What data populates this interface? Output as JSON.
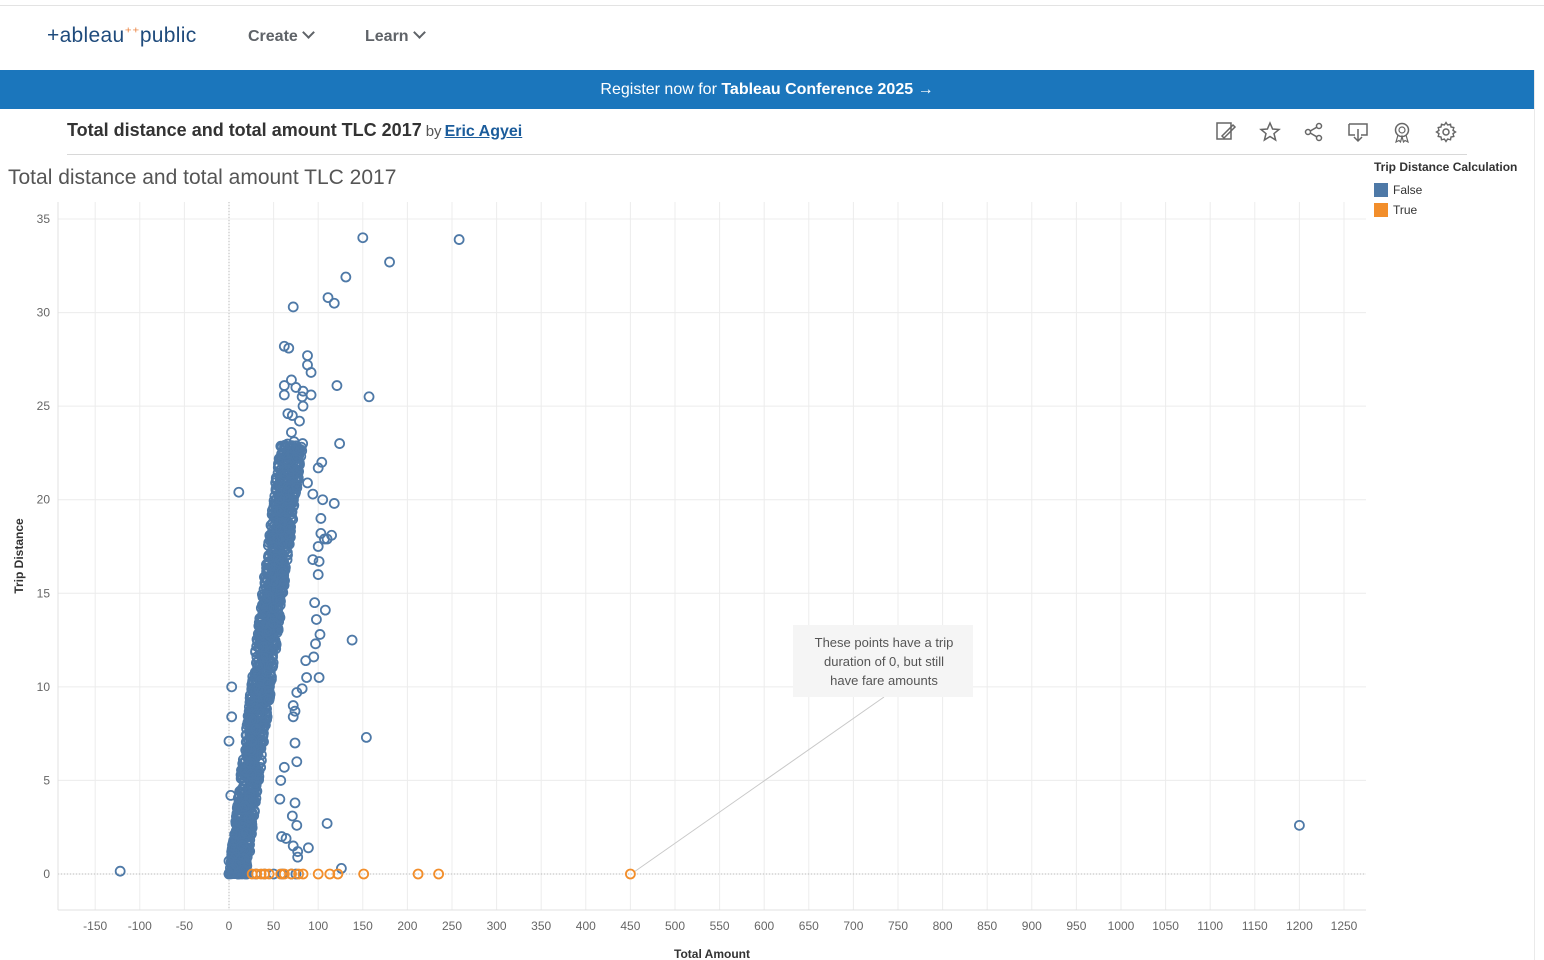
{
  "nav": {
    "logo_text": "+ableau",
    "logo_text2": "public",
    "create": "Create",
    "learn": "Learn"
  },
  "banner": {
    "prefix": "Register now for ",
    "highlight": "Tableau Conference 2025",
    "arrow": "→"
  },
  "viz_header": {
    "title": "Total distance and total amount TLC 2017",
    "by": "by",
    "author": "Eric Agyei",
    "toolbar_icons": [
      "edit-icon",
      "favorite-star-icon",
      "share-icon",
      "download-icon",
      "award-icon",
      "settings-gear-icon"
    ]
  },
  "legend": {
    "title": "Trip Distance Calculation",
    "items": [
      {
        "label": "False",
        "color": "#4e79a7"
      },
      {
        "label": "True",
        "color": "#f28e2b"
      }
    ]
  },
  "annotation": {
    "lines": [
      "These points have a trip",
      "duration of 0, but still",
      "have fare amounts"
    ]
  },
  "chart_data": {
    "type": "scatter",
    "title": "Total distance and total amount TLC 2017",
    "xlabel": "Total Amount",
    "ylabel": "Trip Distance",
    "xlim": [
      -165,
      1265
    ],
    "ylim": [
      -2,
      35.5
    ],
    "x_ticks": [
      -150,
      -100,
      -50,
      0,
      50,
      100,
      150,
      200,
      250,
      300,
      350,
      400,
      450,
      500,
      550,
      600,
      650,
      700,
      750,
      800,
      850,
      900,
      950,
      1000,
      1050,
      1100,
      1150,
      1200,
      1250
    ],
    "y_ticks": [
      0,
      5,
      10,
      15,
      20,
      25,
      30,
      35
    ],
    "grid": true,
    "legend_position": "top-right",
    "series": [
      {
        "name": "False",
        "color": "#4e79a7",
        "dense_band": {
          "x_at_0": [
            0,
            20
          ],
          "x_at_22": [
            55,
            80
          ],
          "y_max": 23
        },
        "points": [
          [
            150,
            34
          ],
          [
            258,
            33.9
          ],
          [
            180,
            32.7
          ],
          [
            131,
            31.9
          ],
          [
            111,
            30.8
          ],
          [
            118,
            30.5
          ],
          [
            72,
            30.3
          ],
          [
            62,
            28.2
          ],
          [
            67,
            28.1
          ],
          [
            88,
            27.7
          ],
          [
            88,
            27.2
          ],
          [
            92,
            26.8
          ],
          [
            70,
            26.4
          ],
          [
            62,
            26.1
          ],
          [
            121,
            26.1
          ],
          [
            75,
            26.0
          ],
          [
            83,
            25.8
          ],
          [
            82,
            25.5
          ],
          [
            92,
            25.6
          ],
          [
            62,
            25.6
          ],
          [
            157,
            25.5
          ],
          [
            83,
            25.0
          ],
          [
            66,
            24.6
          ],
          [
            71,
            24.5
          ],
          [
            79,
            24.2
          ],
          [
            70,
            23.6
          ],
          [
            73,
            23.1
          ],
          [
            124,
            23.0
          ],
          [
            104,
            22.0
          ],
          [
            100,
            21.7
          ],
          [
            11,
            20.4
          ],
          [
            88,
            20.9
          ],
          [
            94,
            20.3
          ],
          [
            105,
            20.0
          ],
          [
            118,
            19.8
          ],
          [
            103,
            19.0
          ],
          [
            103,
            18.2
          ],
          [
            107,
            17.9
          ],
          [
            115,
            18.1
          ],
          [
            110,
            17.9
          ],
          [
            100,
            17.5
          ],
          [
            101,
            16.7
          ],
          [
            100,
            16.0
          ],
          [
            94,
            16.8
          ],
          [
            108,
            14.1
          ],
          [
            96,
            14.5
          ],
          [
            98,
            13.6
          ],
          [
            138,
            12.5
          ],
          [
            102,
            12.8
          ],
          [
            97,
            12.3
          ],
          [
            95,
            11.6
          ],
          [
            86,
            11.4
          ],
          [
            101,
            10.5
          ],
          [
            87,
            10.5
          ],
          [
            82,
            9.9
          ],
          [
            76,
            9.7
          ],
          [
            72,
            9.0
          ],
          [
            74,
            8.7
          ],
          [
            72,
            8.4
          ],
          [
            3,
            10.0
          ],
          [
            3,
            8.4
          ],
          [
            0,
            7.1
          ],
          [
            74,
            7.0
          ],
          [
            154,
            7.3
          ],
          [
            76,
            6.0
          ],
          [
            62,
            5.7
          ],
          [
            58,
            5.0
          ],
          [
            57,
            4.0
          ],
          [
            2,
            4.2
          ],
          [
            74,
            3.8
          ],
          [
            71,
            3.1
          ],
          [
            76,
            2.6
          ],
          [
            110,
            2.7
          ],
          [
            59,
            2.0
          ],
          [
            64,
            1.9
          ],
          [
            72,
            1.5
          ],
          [
            89,
            1.4
          ],
          [
            77,
            1.2
          ],
          [
            77,
            0.9
          ],
          [
            126,
            0.3
          ],
          [
            -122,
            0.15
          ],
          [
            1200,
            2.6
          ],
          [
            0,
            0.0
          ],
          [
            10,
            0.0
          ],
          [
            20,
            0.0
          ],
          [
            30,
            0.0
          ],
          [
            40,
            0.0
          ],
          [
            50,
            0.0
          ],
          [
            60,
            0.0
          ],
          [
            70,
            0.0
          ],
          [
            75,
            0.0
          ],
          [
            5,
            0.3
          ],
          [
            15,
            0.2
          ],
          [
            8,
            0.5
          ],
          [
            0,
            0.7
          ]
        ]
      },
      {
        "name": "True",
        "color": "#f28e2b",
        "points": [
          [
            26,
            0
          ],
          [
            31,
            0
          ],
          [
            36,
            0
          ],
          [
            40,
            0
          ],
          [
            45,
            0
          ],
          [
            58,
            0
          ],
          [
            62,
            0
          ],
          [
            70,
            0
          ],
          [
            78,
            0
          ],
          [
            83,
            0
          ],
          [
            100,
            0
          ],
          [
            113,
            0
          ],
          [
            122,
            0
          ],
          [
            151,
            0
          ],
          [
            212,
            0
          ],
          [
            235,
            0
          ],
          [
            450,
            0
          ]
        ]
      }
    ]
  }
}
